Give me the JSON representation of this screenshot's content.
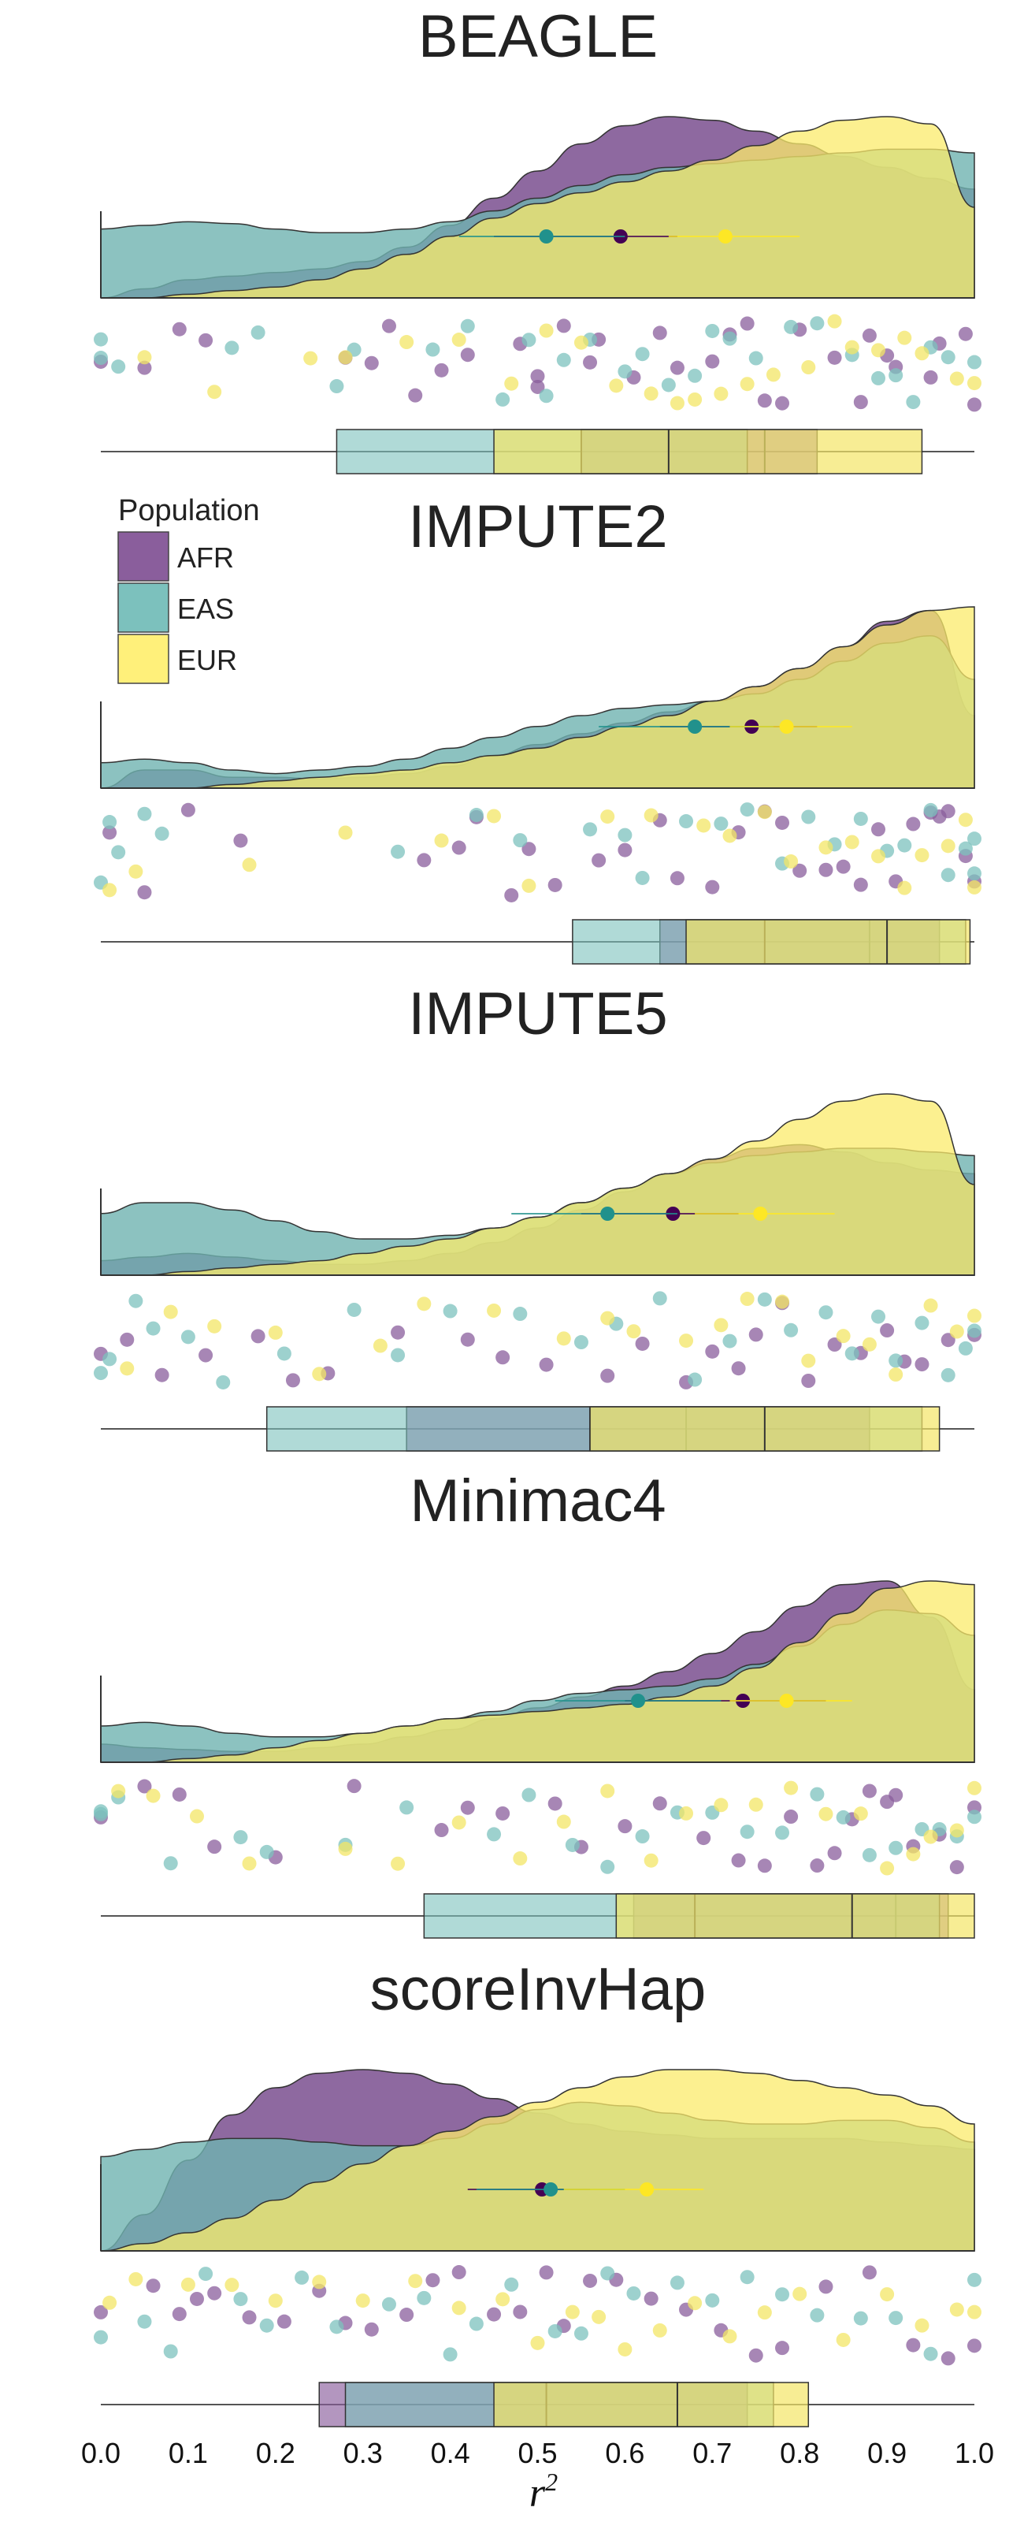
{
  "chart_data": {
    "type": "raincloud",
    "xlabel": "r",
    "xlabel_sup": "2",
    "xlim": [
      0.0,
      1.0
    ],
    "xticks": [
      0.0,
      0.1,
      0.2,
      0.3,
      0.4,
      0.5,
      0.6,
      0.7,
      0.8,
      0.9,
      1.0
    ],
    "xtick_labels": [
      "0.0",
      "0.1",
      "0.2",
      "0.3",
      "0.4",
      "0.5",
      "0.6",
      "0.7",
      "0.8",
      "0.9",
      "1.0"
    ],
    "legend": {
      "title": "Population",
      "placement": "upper-left",
      "entries": [
        {
          "label": "AFR",
          "color": "#8a5e9c"
        },
        {
          "label": "EAS",
          "color": "#7cc1bd"
        },
        {
          "label": "EUR",
          "color": "#fff07a"
        }
      ]
    },
    "colors": {
      "AFR": "#8a5e9c",
      "EAS": "#7cc1bd",
      "EUR": "#fff07a",
      "AFR_dark": "#440154",
      "EAS_dark": "#21918c",
      "EUR_dark": "#fde725"
    },
    "panels": [
      {
        "title": "BEAGLE",
        "densities": {
          "AFR": [
            0.0,
            0.05,
            0.1,
            0.12,
            0.14,
            0.16,
            0.2,
            0.28,
            0.4,
            0.55,
            0.7,
            0.85,
            0.95,
            1.0,
            0.98,
            0.92,
            0.85,
            0.78,
            0.72,
            0.66,
            0.6
          ],
          "EAS": [
            0.38,
            0.4,
            0.42,
            0.41,
            0.38,
            0.36,
            0.36,
            0.38,
            0.42,
            0.48,
            0.55,
            0.62,
            0.68,
            0.72,
            0.74,
            0.76,
            0.78,
            0.8,
            0.82,
            0.82,
            0.8
          ],
          "EUR": [
            0.0,
            0.0,
            0.02,
            0.04,
            0.06,
            0.1,
            0.16,
            0.24,
            0.34,
            0.44,
            0.52,
            0.58,
            0.64,
            0.7,
            0.76,
            0.84,
            0.92,
            0.98,
            1.0,
            0.96,
            0.5
          ]
        },
        "means": {
          "AFR": 0.595,
          "EAS": 0.51,
          "EUR": 0.715
        },
        "ci": {
          "AFR": [
            0.45,
            0.66
          ],
          "EAS": [
            0.41,
            0.6
          ],
          "EUR": [
            0.65,
            0.8
          ]
        },
        "boxes": {
          "AFR": {
            "q1": 0.55,
            "median": 0.76,
            "q3": 0.82,
            "whisker": [
              0.0,
              1.0
            ]
          },
          "EAS": {
            "q1": 0.27,
            "median": 0.55,
            "q3": 0.74,
            "whisker": [
              0.0,
              1.0
            ]
          },
          "EUR": {
            "q1": 0.45,
            "median": 0.65,
            "q3": 0.94,
            "whisker": [
              0.0,
              1.0
            ]
          }
        },
        "points": {
          "AFR": [
            0.0,
            0.05,
            0.09,
            0.12,
            0.28,
            0.31,
            0.33,
            0.36,
            0.39,
            0.42,
            0.48,
            0.5,
            0.5,
            0.53,
            0.56,
            0.57,
            0.61,
            0.64,
            0.66,
            0.7,
            0.72,
            0.74,
            0.76,
            0.78,
            0.8,
            0.84,
            0.87,
            0.88,
            0.9,
            0.91,
            0.95,
            0.96,
            0.99,
            1.0
          ],
          "EAS": [
            0.0,
            0.0,
            0.02,
            0.15,
            0.18,
            0.27,
            0.29,
            0.38,
            0.42,
            0.46,
            0.49,
            0.51,
            0.53,
            0.56,
            0.6,
            0.62,
            0.65,
            0.68,
            0.7,
            0.72,
            0.75,
            0.79,
            0.82,
            0.86,
            0.89,
            0.91,
            0.93,
            0.95,
            0.97,
            1.0
          ],
          "EUR": [
            0.05,
            0.13,
            0.24,
            0.28,
            0.35,
            0.41,
            0.47,
            0.51,
            0.55,
            0.59,
            0.63,
            0.66,
            0.68,
            0.71,
            0.74,
            0.77,
            0.81,
            0.84,
            0.86,
            0.89,
            0.92,
            0.94,
            0.98,
            1.0
          ]
        }
      },
      {
        "title": "IMPUTE2",
        "densities": {
          "AFR": [
            0.0,
            0.1,
            0.1,
            0.06,
            0.06,
            0.05,
            0.06,
            0.08,
            0.12,
            0.18,
            0.24,
            0.3,
            0.36,
            0.42,
            0.48,
            0.56,
            0.66,
            0.78,
            0.92,
            0.98,
            0.4
          ],
          "EAS": [
            0.14,
            0.16,
            0.14,
            0.1,
            0.08,
            0.1,
            0.12,
            0.16,
            0.22,
            0.28,
            0.34,
            0.4,
            0.44,
            0.46,
            0.48,
            0.52,
            0.6,
            0.7,
            0.8,
            0.84,
            0.6
          ],
          "EUR": [
            0.0,
            0.0,
            0.0,
            0.02,
            0.04,
            0.06,
            0.08,
            0.1,
            0.14,
            0.18,
            0.22,
            0.28,
            0.34,
            0.4,
            0.48,
            0.56,
            0.66,
            0.78,
            0.9,
            0.98,
            1.0
          ]
        },
        "means": {
          "AFR": 0.745,
          "EAS": 0.68,
          "EUR": 0.785
        },
        "ci": {
          "AFR": [
            0.64,
            0.82
          ],
          "EAS": [
            0.57,
            0.77
          ],
          "EUR": [
            0.72,
            0.86
          ]
        },
        "boxes": {
          "AFR": {
            "q1": 0.64,
            "median": 0.88,
            "q3": 0.96,
            "whisker": [
              0.0,
              1.0
            ]
          },
          "EAS": {
            "q1": 0.54,
            "median": 0.76,
            "q3": 0.99,
            "whisker": [
              0.0,
              1.0
            ]
          },
          "EUR": {
            "q1": 0.67,
            "median": 0.9,
            "q3": 0.995,
            "whisker": [
              0.0,
              1.0
            ]
          }
        },
        "points": {
          "AFR": [
            0.01,
            0.05,
            0.1,
            0.16,
            0.37,
            0.41,
            0.43,
            0.47,
            0.49,
            0.52,
            0.57,
            0.6,
            0.64,
            0.66,
            0.7,
            0.73,
            0.76,
            0.78,
            0.8,
            0.83,
            0.85,
            0.87,
            0.89,
            0.91,
            0.93,
            0.95,
            0.96,
            0.97,
            0.99,
            1.0
          ],
          "EAS": [
            0.0,
            0.01,
            0.02,
            0.05,
            0.07,
            0.34,
            0.43,
            0.48,
            0.56,
            0.6,
            0.62,
            0.67,
            0.71,
            0.74,
            0.78,
            0.81,
            0.84,
            0.87,
            0.9,
            0.92,
            0.95,
            0.97,
            0.99,
            1.0,
            1.0
          ],
          "EUR": [
            0.01,
            0.04,
            0.17,
            0.28,
            0.39,
            0.45,
            0.49,
            0.58,
            0.63,
            0.69,
            0.72,
            0.76,
            0.79,
            0.83,
            0.86,
            0.89,
            0.92,
            0.94,
            0.97,
            0.99,
            1.0
          ]
        }
      },
      {
        "title": "IMPUTE5",
        "densities": {
          "AFR": [
            0.08,
            0.1,
            0.12,
            0.1,
            0.08,
            0.06,
            0.06,
            0.08,
            0.12,
            0.18,
            0.26,
            0.36,
            0.46,
            0.56,
            0.64,
            0.7,
            0.72,
            0.68,
            0.62,
            0.58,
            0.56
          ],
          "EAS": [
            0.34,
            0.4,
            0.4,
            0.36,
            0.3,
            0.24,
            0.2,
            0.2,
            0.22,
            0.26,
            0.32,
            0.4,
            0.48,
            0.56,
            0.62,
            0.66,
            0.68,
            0.7,
            0.7,
            0.68,
            0.66
          ],
          "EUR": [
            0.0,
            0.0,
            0.02,
            0.04,
            0.06,
            0.08,
            0.12,
            0.16,
            0.2,
            0.26,
            0.32,
            0.4,
            0.48,
            0.56,
            0.64,
            0.74,
            0.86,
            0.96,
            1.0,
            0.96,
            0.5
          ]
        },
        "means": {
          "AFR": 0.655,
          "EAS": 0.58,
          "EUR": 0.755
        },
        "ci": {
          "AFR": [
            0.55,
            0.73
          ],
          "EAS": [
            0.47,
            0.66
          ],
          "EUR": [
            0.68,
            0.84
          ]
        },
        "boxes": {
          "AFR": {
            "q1": 0.35,
            "median": 0.67,
            "q3": 0.88,
            "whisker": [
              0.0,
              1.0
            ]
          },
          "EAS": {
            "q1": 0.19,
            "median": 0.56,
            "q3": 0.94,
            "whisker": [
              0.0,
              1.0
            ]
          },
          "EUR": {
            "q1": 0.56,
            "median": 0.76,
            "q3": 0.96,
            "whisker": [
              0.0,
              1.0
            ]
          }
        },
        "points": {
          "AFR": [
            0.0,
            0.03,
            0.07,
            0.12,
            0.18,
            0.22,
            0.26,
            0.34,
            0.42,
            0.46,
            0.51,
            0.58,
            0.62,
            0.67,
            0.7,
            0.73,
            0.75,
            0.78,
            0.81,
            0.84,
            0.87,
            0.9,
            0.92,
            0.94,
            0.97,
            1.0
          ],
          "EAS": [
            0.0,
            0.01,
            0.04,
            0.06,
            0.1,
            0.14,
            0.21,
            0.29,
            0.34,
            0.4,
            0.48,
            0.55,
            0.59,
            0.64,
            0.68,
            0.72,
            0.76,
            0.79,
            0.83,
            0.86,
            0.89,
            0.91,
            0.94,
            0.97,
            0.99,
            1.0
          ],
          "EUR": [
            0.03,
            0.08,
            0.13,
            0.2,
            0.25,
            0.32,
            0.37,
            0.45,
            0.53,
            0.58,
            0.61,
            0.67,
            0.71,
            0.74,
            0.78,
            0.81,
            0.85,
            0.88,
            0.91,
            0.95,
            0.98,
            1.0
          ]
        }
      },
      {
        "title": "Minimac4",
        "densities": {
          "AFR": [
            0.1,
            0.08,
            0.07,
            0.06,
            0.06,
            0.08,
            0.1,
            0.14,
            0.18,
            0.24,
            0.3,
            0.36,
            0.42,
            0.5,
            0.6,
            0.72,
            0.86,
            0.98,
            1.0,
            0.8,
            0.4
          ],
          "EAS": [
            0.2,
            0.22,
            0.2,
            0.16,
            0.14,
            0.14,
            0.16,
            0.2,
            0.24,
            0.28,
            0.34,
            0.38,
            0.4,
            0.42,
            0.46,
            0.54,
            0.64,
            0.76,
            0.84,
            0.82,
            0.7
          ],
          "EUR": [
            0.0,
            0.0,
            0.02,
            0.04,
            0.08,
            0.12,
            0.16,
            0.2,
            0.24,
            0.26,
            0.28,
            0.3,
            0.32,
            0.36,
            0.42,
            0.52,
            0.66,
            0.82,
            0.96,
            1.0,
            0.98
          ]
        },
        "means": {
          "AFR": 0.735,
          "EAS": 0.615,
          "EUR": 0.785
        },
        "ci": {
          "AFR": [
            0.6,
            0.83
          ],
          "EAS": [
            0.52,
            0.71
          ],
          "EUR": [
            0.72,
            0.86
          ]
        },
        "boxes": {
          "AFR": {
            "q1": 0.61,
            "median": 0.91,
            "q3": 0.97,
            "whisker": [
              0.0,
              1.0
            ]
          },
          "EAS": {
            "q1": 0.37,
            "median": 0.68,
            "q3": 0.96,
            "whisker": [
              0.0,
              1.0
            ]
          },
          "EUR": {
            "q1": 0.59,
            "median": 0.86,
            "q3": 1.0,
            "whisker": [
              0.0,
              1.0
            ]
          }
        },
        "points": {
          "AFR": [
            0.0,
            0.05,
            0.09,
            0.13,
            0.2,
            0.29,
            0.39,
            0.42,
            0.46,
            0.52,
            0.55,
            0.6,
            0.64,
            0.69,
            0.73,
            0.76,
            0.79,
            0.82,
            0.84,
            0.86,
            0.88,
            0.9,
            0.91,
            0.93,
            0.96,
            0.98,
            1.0
          ],
          "EAS": [
            0.0,
            0.0,
            0.02,
            0.08,
            0.16,
            0.19,
            0.28,
            0.35,
            0.45,
            0.49,
            0.54,
            0.58,
            0.62,
            0.66,
            0.7,
            0.74,
            0.78,
            0.82,
            0.85,
            0.88,
            0.91,
            0.94,
            0.96,
            0.98,
            1.0
          ],
          "EUR": [
            0.02,
            0.06,
            0.11,
            0.17,
            0.28,
            0.34,
            0.41,
            0.48,
            0.53,
            0.58,
            0.63,
            0.67,
            0.71,
            0.75,
            0.79,
            0.83,
            0.87,
            0.9,
            0.93,
            0.95,
            0.98,
            1.0
          ]
        }
      },
      {
        "title": "scoreInvHap",
        "densities": {
          "AFR": [
            0.0,
            0.2,
            0.5,
            0.75,
            0.9,
            0.98,
            1.0,
            0.98,
            0.92,
            0.84,
            0.76,
            0.7,
            0.66,
            0.64,
            0.62,
            0.62,
            0.62,
            0.62,
            0.6,
            0.58,
            0.56
          ],
          "EAS": [
            0.52,
            0.56,
            0.6,
            0.62,
            0.62,
            0.6,
            0.58,
            0.58,
            0.62,
            0.7,
            0.78,
            0.82,
            0.8,
            0.76,
            0.72,
            0.7,
            0.7,
            0.72,
            0.72,
            0.68,
            0.6
          ],
          "EUR": [
            0.0,
            0.04,
            0.1,
            0.18,
            0.28,
            0.38,
            0.48,
            0.58,
            0.66,
            0.74,
            0.82,
            0.9,
            0.96,
            1.0,
            1.0,
            0.98,
            0.94,
            0.9,
            0.86,
            0.8,
            0.7
          ]
        },
        "means": {
          "AFR": 0.505,
          "EAS": 0.515,
          "EUR": 0.625
        },
        "ci": {
          "AFR": [
            0.42,
            0.56
          ],
          "EAS": [
            0.43,
            0.6
          ],
          "EUR": [
            0.53,
            0.69
          ]
        },
        "boxes": {
          "AFR": {
            "q1": 0.25,
            "median": 0.51,
            "q3": 0.74,
            "whisker": [
              0.0,
              1.0
            ]
          },
          "EAS": {
            "q1": 0.28,
            "median": 0.51,
            "q3": 0.77,
            "whisker": [
              0.0,
              1.0
            ]
          },
          "EUR": {
            "q1": 0.45,
            "median": 0.66,
            "q3": 0.81,
            "whisker": [
              0.0,
              1.0
            ]
          }
        },
        "points": {
          "AFR": [
            0.0,
            0.06,
            0.09,
            0.11,
            0.13,
            0.17,
            0.21,
            0.25,
            0.28,
            0.31,
            0.35,
            0.38,
            0.41,
            0.45,
            0.48,
            0.51,
            0.53,
            0.56,
            0.59,
            0.63,
            0.67,
            0.71,
            0.75,
            0.78,
            0.83,
            0.88,
            0.93,
            0.97,
            1.0
          ],
          "EAS": [
            0.0,
            0.05,
            0.08,
            0.12,
            0.16,
            0.19,
            0.23,
            0.27,
            0.33,
            0.37,
            0.4,
            0.43,
            0.47,
            0.52,
            0.55,
            0.58,
            0.61,
            0.66,
            0.7,
            0.74,
            0.78,
            0.82,
            0.87,
            0.91,
            0.95,
            1.0
          ],
          "EUR": [
            0.01,
            0.04,
            0.1,
            0.15,
            0.2,
            0.25,
            0.3,
            0.36,
            0.41,
            0.46,
            0.5,
            0.54,
            0.57,
            0.6,
            0.64,
            0.68,
            0.72,
            0.76,
            0.8,
            0.85,
            0.9,
            0.94,
            0.98,
            1.0
          ]
        }
      }
    ]
  }
}
